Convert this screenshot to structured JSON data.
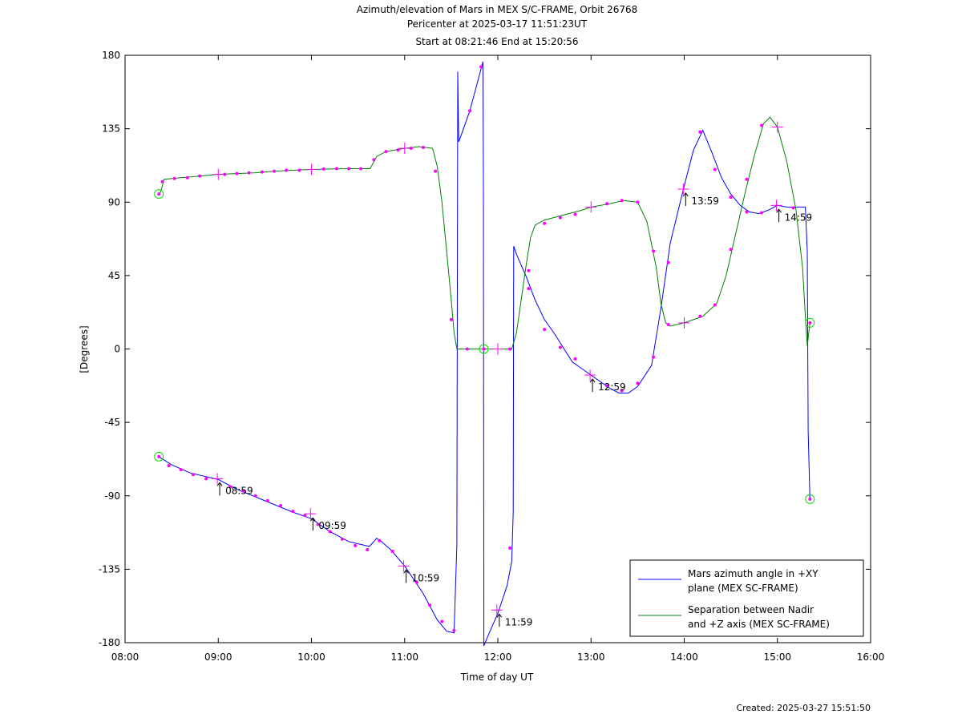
{
  "chart_data": {
    "type": "line",
    "title": "Azimuth/elevation of Mars in MEX S/C-FRAME,  Orbit 26768",
    "subtitle_1": "Pericenter at 2025-03-17 11:51:23UT",
    "subtitle_2": "Start at 08:21:46 End at 15:20:56",
    "xlabel": "Time of day UT",
    "ylabel": "[Degrees]",
    "xlim": [
      8.0,
      16.0
    ],
    "ylim": [
      -180,
      180
    ],
    "x_ticks": [
      8,
      9,
      10,
      11,
      12,
      13,
      14,
      15,
      16
    ],
    "x_tick_labels": [
      "08:00",
      "09:00",
      "10:00",
      "11:00",
      "12:00",
      "13:00",
      "14:00",
      "15:00",
      "16:00"
    ],
    "y_ticks": [
      180,
      135,
      90,
      45,
      0,
      -45,
      -90,
      -135,
      -180
    ],
    "y_tick_labels": [
      "180",
      "135",
      "90",
      "45",
      "0",
      "-45",
      "-90",
      "-135",
      "-180"
    ],
    "grid": false,
    "legend_position": "bottom-right",
    "series": [
      {
        "name": "Mars azimuth angle in +XY\nplane (MEX SC-FRAME)",
        "legend_line1": "Mars azimuth angle in +XY",
        "legend_line2": "plane (MEX SC-FRAME)",
        "color": "#0000ff",
        "points": [
          [
            8.363,
            -66
          ],
          [
            8.5,
            -71
          ],
          [
            8.7,
            -76
          ],
          [
            9.0,
            -80
          ],
          [
            9.2,
            -86
          ],
          [
            9.5,
            -93
          ],
          [
            9.8,
            -100
          ],
          [
            10.0,
            -104
          ],
          [
            10.2,
            -112
          ],
          [
            10.4,
            -118
          ],
          [
            10.62,
            -121
          ],
          [
            10.67,
            -118
          ],
          [
            10.7,
            -116
          ],
          [
            10.75,
            -118
          ],
          [
            10.85,
            -123
          ],
          [
            11.0,
            -133
          ],
          [
            11.2,
            -150
          ],
          [
            11.35,
            -166
          ],
          [
            11.45,
            -173
          ],
          [
            11.53,
            -174
          ],
          [
            11.56,
            -120
          ],
          [
            11.57,
            170
          ],
          [
            11.58,
            127
          ],
          [
            11.6,
            130
          ],
          [
            11.7,
            146
          ],
          [
            11.84,
            176
          ],
          [
            11.845,
            100
          ],
          [
            11.85,
            -182
          ],
          [
            11.9,
            -175
          ],
          [
            12.0,
            -162
          ],
          [
            12.1,
            -145
          ],
          [
            12.15,
            -130
          ],
          [
            12.165,
            -100
          ],
          [
            12.17,
            63
          ],
          [
            12.2,
            58
          ],
          [
            12.3,
            45
          ],
          [
            12.4,
            30
          ],
          [
            12.5,
            18
          ],
          [
            12.6,
            10
          ],
          [
            12.8,
            -8
          ],
          [
            13.0,
            -16
          ],
          [
            13.2,
            -24
          ],
          [
            13.3,
            -27
          ],
          [
            13.4,
            -27
          ],
          [
            13.5,
            -23
          ],
          [
            13.65,
            -10
          ],
          [
            13.75,
            25
          ],
          [
            13.85,
            65
          ],
          [
            14.0,
            100
          ],
          [
            14.1,
            122
          ],
          [
            14.2,
            134
          ],
          [
            14.3,
            120
          ],
          [
            14.4,
            105
          ],
          [
            14.5,
            95
          ],
          [
            14.6,
            88
          ],
          [
            14.7,
            84
          ],
          [
            14.8,
            83
          ],
          [
            14.9,
            85
          ],
          [
            15.0,
            88
          ],
          [
            15.1,
            87
          ],
          [
            15.2,
            87
          ],
          [
            15.3,
            87
          ],
          [
            15.32,
            60
          ],
          [
            15.33,
            -50
          ],
          [
            15.349,
            -92
          ]
        ],
        "markers": [
          [
            8.47,
            -71.5
          ],
          [
            8.6,
            -74
          ],
          [
            8.73,
            -77
          ],
          [
            8.87,
            -79.5
          ],
          [
            9.13,
            -84.5
          ],
          [
            9.27,
            -87
          ],
          [
            9.4,
            -90
          ],
          [
            9.53,
            -93
          ],
          [
            9.67,
            -96
          ],
          [
            9.8,
            -99.5
          ],
          [
            9.93,
            -102
          ],
          [
            10.07,
            -107.5
          ],
          [
            10.2,
            -112
          ],
          [
            10.33,
            -116.5
          ],
          [
            10.47,
            -120.5
          ],
          [
            10.6,
            -123
          ],
          [
            10.73,
            -117.5
          ],
          [
            10.87,
            -124
          ],
          [
            11.13,
            -143
          ],
          [
            11.27,
            -157
          ],
          [
            11.4,
            -167
          ],
          [
            11.53,
            -172.5
          ],
          [
            11.7,
            146
          ],
          [
            11.82,
            173
          ],
          [
            12.13,
            -122
          ],
          [
            12.33,
            37
          ],
          [
            12.5,
            12
          ],
          [
            12.67,
            1
          ],
          [
            12.83,
            -6
          ],
          [
            13.17,
            -22.5
          ],
          [
            13.33,
            -25.5
          ],
          [
            13.5,
            -21
          ],
          [
            13.67,
            -5
          ],
          [
            13.83,
            53
          ],
          [
            14.17,
            133
          ],
          [
            14.33,
            110
          ],
          [
            14.5,
            93
          ],
          [
            14.67,
            84
          ],
          [
            14.83,
            83.5
          ],
          [
            15.17,
            86.5
          ]
        ],
        "hour_marks": [
          [
            8.99,
            -79.5,
            "08:59"
          ],
          [
            9.99,
            -101,
            "09:59"
          ],
          [
            10.99,
            -133,
            "10:59"
          ],
          [
            11.99,
            -160,
            "11:59"
          ],
          [
            12.99,
            -16,
            "12:59"
          ],
          [
            13.99,
            98,
            "13:59"
          ],
          [
            14.99,
            88,
            "14:59"
          ]
        ],
        "start_end": [
          [
            8.363,
            -66
          ],
          [
            15.349,
            -92
          ]
        ]
      },
      {
        "name": "Separation between Nadir\nand +Z axis (MEX SC-FRAME)",
        "legend_line1": "Separation between Nadir",
        "legend_line2": "and +Z axis (MEX SC-FRAME)",
        "color": "#008000",
        "points": [
          [
            8.363,
            95
          ],
          [
            8.38,
            96
          ],
          [
            8.42,
            104
          ],
          [
            8.6,
            105
          ],
          [
            8.8,
            106
          ],
          [
            9.0,
            107
          ],
          [
            9.2,
            107.5
          ],
          [
            9.4,
            108
          ],
          [
            9.6,
            109
          ],
          [
            9.8,
            109.5
          ],
          [
            10.0,
            110
          ],
          [
            10.2,
            110.3
          ],
          [
            10.4,
            110.5
          ],
          [
            10.63,
            110.5
          ],
          [
            10.7,
            118
          ],
          [
            10.8,
            121
          ],
          [
            11.0,
            123
          ],
          [
            11.15,
            124
          ],
          [
            11.3,
            123
          ],
          [
            11.35,
            112
          ],
          [
            11.4,
            90
          ],
          [
            11.45,
            60
          ],
          [
            11.5,
            30
          ],
          [
            11.53,
            10
          ],
          [
            11.56,
            0
          ],
          [
            11.7,
            0
          ],
          [
            11.85,
            0
          ],
          [
            12.0,
            0
          ],
          [
            12.15,
            0
          ],
          [
            12.2,
            10
          ],
          [
            12.25,
            30
          ],
          [
            12.3,
            50
          ],
          [
            12.35,
            68
          ],
          [
            12.4,
            76
          ],
          [
            12.5,
            79
          ],
          [
            12.7,
            82
          ],
          [
            12.9,
            85
          ],
          [
            13.0,
            87
          ],
          [
            13.2,
            89
          ],
          [
            13.35,
            91
          ],
          [
            13.5,
            90
          ],
          [
            13.6,
            78
          ],
          [
            13.7,
            50
          ],
          [
            13.75,
            28
          ],
          [
            13.8,
            16
          ],
          [
            13.85,
            14
          ],
          [
            14.0,
            16
          ],
          [
            14.2,
            20
          ],
          [
            14.35,
            28
          ],
          [
            14.45,
            45
          ],
          [
            14.55,
            70
          ],
          [
            14.65,
            95
          ],
          [
            14.75,
            118
          ],
          [
            14.85,
            138
          ],
          [
            14.92,
            142
          ],
          [
            15.0,
            136
          ],
          [
            15.1,
            115
          ],
          [
            15.2,
            85
          ],
          [
            15.27,
            50
          ],
          [
            15.3,
            20
          ],
          [
            15.32,
            2
          ],
          [
            15.349,
            16
          ]
        ],
        "markers": [
          [
            8.4,
            102.5
          ],
          [
            8.53,
            104.5
          ],
          [
            8.67,
            105
          ],
          [
            8.8,
            106
          ],
          [
            9.07,
            107
          ],
          [
            9.2,
            107.5
          ],
          [
            9.33,
            108
          ],
          [
            9.47,
            108.5
          ],
          [
            9.6,
            109
          ],
          [
            9.73,
            109.5
          ],
          [
            9.87,
            109.5
          ],
          [
            10.13,
            110.3
          ],
          [
            10.27,
            110.5
          ],
          [
            10.4,
            110.5
          ],
          [
            10.53,
            110.5
          ],
          [
            10.67,
            116
          ],
          [
            10.8,
            121
          ],
          [
            10.93,
            122
          ],
          [
            11.07,
            123
          ],
          [
            11.2,
            123.5
          ],
          [
            11.33,
            109
          ],
          [
            11.5,
            18
          ],
          [
            11.67,
            0
          ],
          [
            12.13,
            0
          ],
          [
            12.33,
            48
          ],
          [
            12.5,
            77
          ],
          [
            12.67,
            80.5
          ],
          [
            12.83,
            82.5
          ],
          [
            13.17,
            89
          ],
          [
            13.33,
            91
          ],
          [
            13.5,
            90
          ],
          [
            13.67,
            60
          ],
          [
            13.83,
            15
          ],
          [
            14.17,
            20
          ],
          [
            14.33,
            27
          ],
          [
            14.5,
            61
          ],
          [
            14.67,
            104
          ],
          [
            14.83,
            137
          ]
        ],
        "big_markers": [
          [
            9.0,
            107
          ],
          [
            10.0,
            110
          ],
          [
            11.0,
            123
          ],
          [
            12.0,
            0
          ],
          [
            13.0,
            87
          ],
          [
            14.0,
            16
          ],
          [
            15.0,
            136
          ]
        ],
        "start_end": [
          [
            8.363,
            95
          ],
          [
            11.85,
            0
          ],
          [
            15.349,
            16
          ]
        ]
      }
    ]
  },
  "footer": {
    "created": "Created: 2025-03-27 15:51:50"
  }
}
